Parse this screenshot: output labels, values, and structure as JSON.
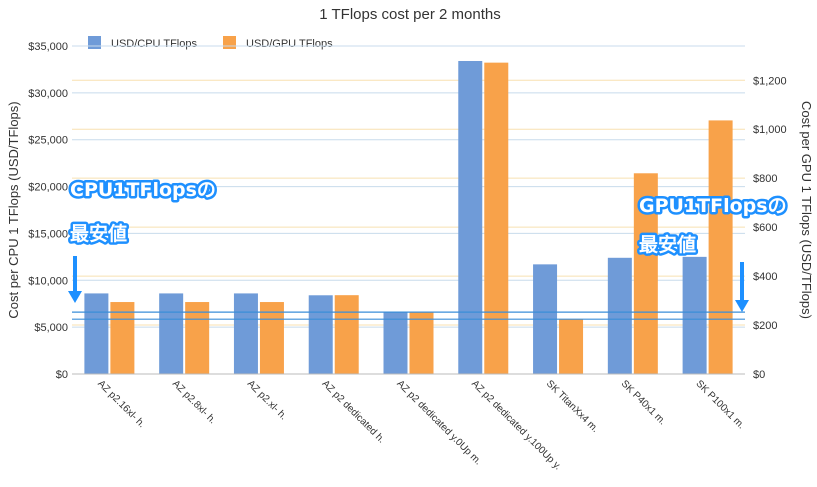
{
  "colors": {
    "cpu": "#6f9bd8",
    "gpu": "#f8a24a",
    "cpu_grid": "#c8dbec",
    "gpu_grid": "#f8e0b0",
    "annotation": "#1e90ff",
    "reference_line": "#3a8ed8"
  },
  "chart_data": {
    "type": "bar",
    "title": "1 TFlops cost per 2 months",
    "categories": [
      "AZ p2.16xl- h.",
      "AZ p2.8xl- h.",
      "AZ p2.xl- h.",
      "AZ p2 dedicated h.",
      "AZ p2 dedicated y.0Up m.",
      "AZ p2 dedicated y.100Up y.",
      "SK TitanXx4 m.",
      "SK P40x1 m.",
      "SK P100x1 m."
    ],
    "series": [
      {
        "name": "USD/CPU TFlops",
        "axis": "left",
        "values": [
          8600,
          8600,
          8600,
          8400,
          6600,
          33400,
          11700,
          12400,
          12500
        ]
      },
      {
        "name": "USD/GPU TFlops",
        "axis": "right",
        "values": [
          294,
          294,
          294,
          322,
          252,
          1272,
          224,
          820,
          1036
        ]
      }
    ],
    "ylabel": "Cost per CPU 1 TFlops (USD/TFlops)",
    "y2label": "Cost per GPU 1 TFlops (USD/TFlops)",
    "ylim": [
      0,
      35000
    ],
    "y2lim": [
      0,
      1340
    ],
    "yticks": [
      "$0",
      "$5,000",
      "$10,000",
      "$15,000",
      "$20,000",
      "$25,000",
      "$30,000",
      "$35,000"
    ],
    "y2ticks": [
      "$0",
      "$200",
      "$400",
      "$600",
      "$800",
      "$1,000",
      "$1,200"
    ],
    "grid": true,
    "legend": "top-left",
    "annotations": [
      {
        "lines": [
          "CPU1TFlopsの",
          "最安値"
        ],
        "side": "left"
      },
      {
        "lines": [
          "GPU1TFlopsの",
          "最安値"
        ],
        "side": "right"
      }
    ]
  }
}
